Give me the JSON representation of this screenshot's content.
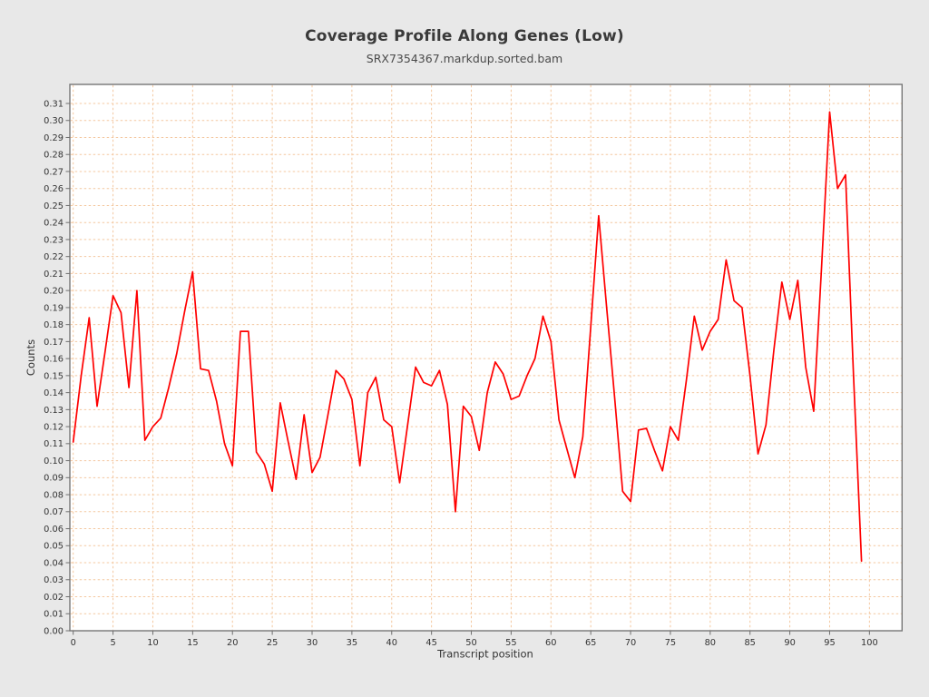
{
  "header": {
    "title": "Coverage Profile Along Genes (Low)",
    "subtitle": "SRX7354367.markdup.sorted.bam"
  },
  "chart_data": {
    "type": "line",
    "title": "Coverage Profile Along Genes (Low)",
    "subtitle": "SRX7354367.markdup.sorted.bam",
    "xlabel": "Transcript position",
    "ylabel": "Counts",
    "legend": "none",
    "grid": "dashed",
    "x": {
      "start": 0,
      "step": 1,
      "count": 100
    },
    "values": [
      0.111,
      0.15,
      0.184,
      0.132,
      0.164,
      0.197,
      0.187,
      0.143,
      0.2,
      0.112,
      0.12,
      0.125,
      0.143,
      0.163,
      0.188,
      0.211,
      0.154,
      0.153,
      0.135,
      0.11,
      0.097,
      0.176,
      0.176,
      0.105,
      0.098,
      0.082,
      0.134,
      0.111,
      0.089,
      0.127,
      0.093,
      0.102,
      0.127,
      0.153,
      0.148,
      0.136,
      0.097,
      0.14,
      0.149,
      0.124,
      0.12,
      0.087,
      0.121,
      0.155,
      0.146,
      0.144,
      0.153,
      0.133,
      0.07,
      0.132,
      0.126,
      0.106,
      0.14,
      0.158,
      0.151,
      0.136,
      0.138,
      0.15,
      0.16,
      0.185,
      0.17,
      0.124,
      0.107,
      0.09,
      0.114,
      0.179,
      0.244,
      0.19,
      0.137,
      0.082,
      0.076,
      0.118,
      0.119,
      0.106,
      0.094,
      0.12,
      0.112,
      0.147,
      0.185,
      0.165,
      0.176,
      0.183,
      0.218,
      0.194,
      0.19,
      0.15,
      0.104,
      0.121,
      0.165,
      0.205,
      0.183,
      0.206,
      0.155,
      0.129,
      0.215,
      0.305,
      0.26,
      0.268,
      0.15,
      0.041
    ],
    "x_ticks": [
      0,
      5,
      10,
      15,
      20,
      25,
      30,
      35,
      40,
      45,
      50,
      55,
      60,
      65,
      70,
      75,
      80,
      85,
      90,
      95,
      100
    ],
    "y_ticks": [
      "0.00",
      "0.01",
      "0.02",
      "0.03",
      "0.04",
      "0.05",
      "0.06",
      "0.07",
      "0.08",
      "0.09",
      "0.10",
      "0.11",
      "0.12",
      "0.13",
      "0.14",
      "0.15",
      "0.16",
      "0.17",
      "0.18",
      "0.19",
      "0.20",
      "0.21",
      "0.22",
      "0.23",
      "0.24",
      "0.25",
      "0.26",
      "0.27",
      "0.28",
      "0.29",
      "0.30",
      "0.31"
    ],
    "y_tick_step": 0.01,
    "xlim": [
      -0.45,
      104.2
    ],
    "ylim": [
      0,
      0.3212
    ],
    "colors": {
      "line": "#ff0000",
      "grid": "#f4c8a0",
      "frame": "#767676",
      "tick": "#6e6e6e",
      "plot_background": "#ffffff",
      "page_background": "#e8e8e8",
      "title_text": "#3a3a3a",
      "tick_text": "#333333"
    }
  }
}
